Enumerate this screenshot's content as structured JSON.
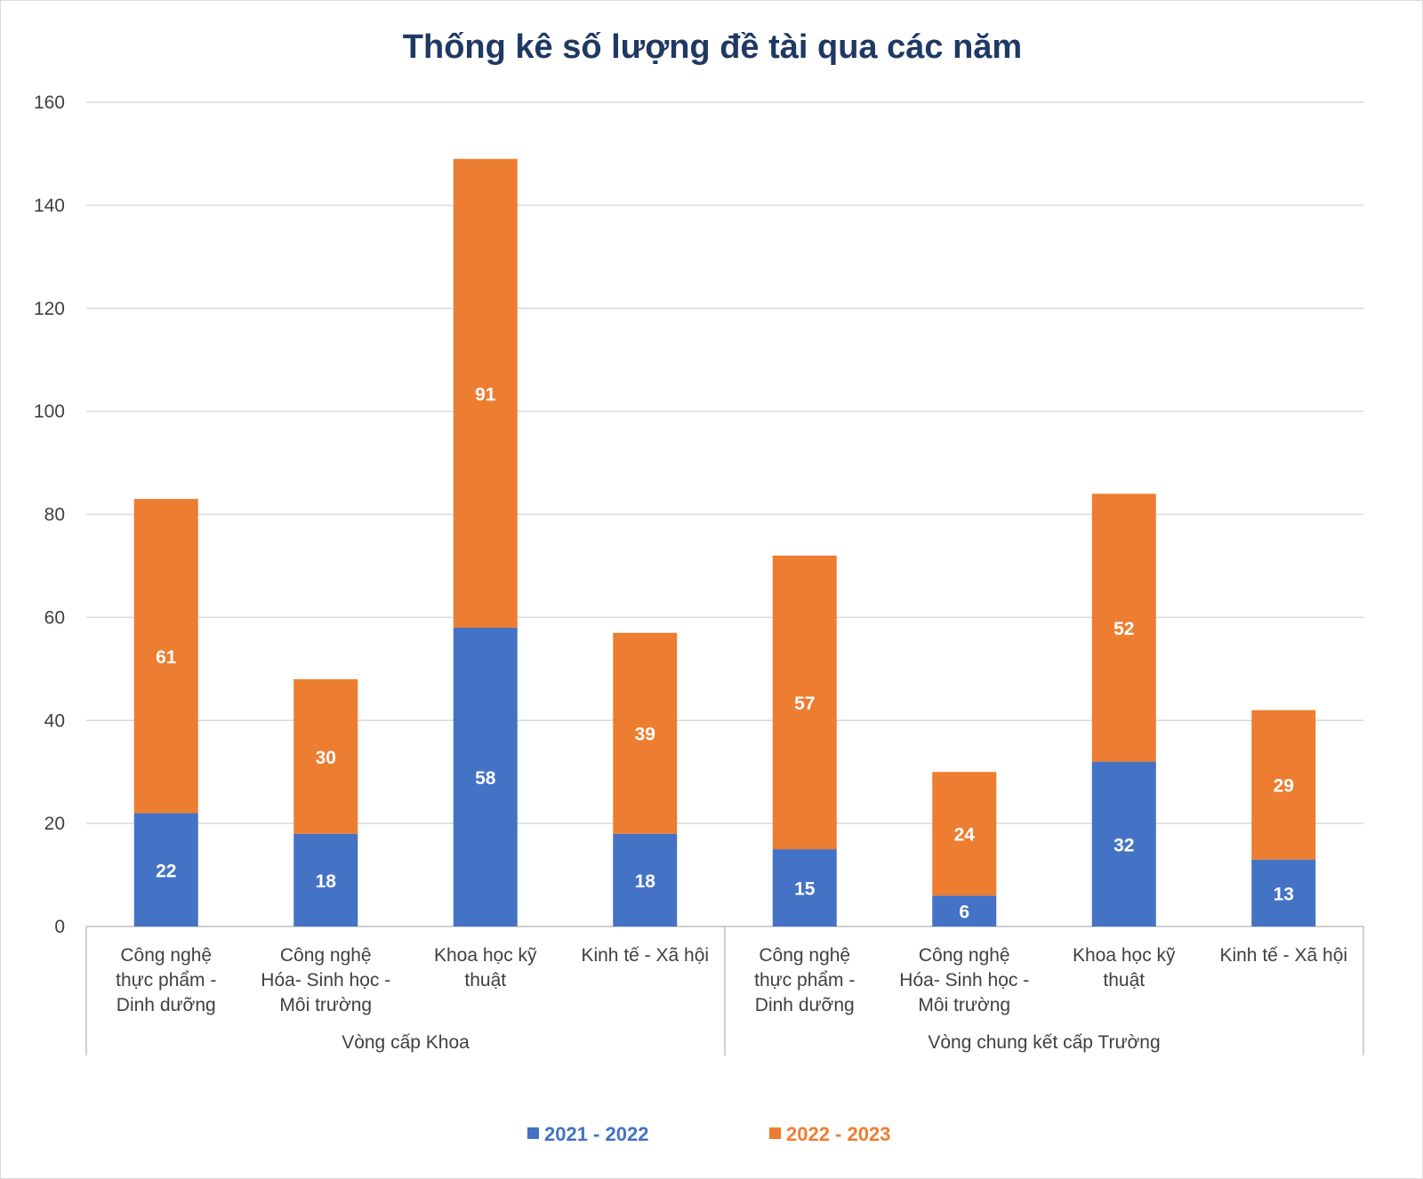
{
  "chart_data": {
    "type": "bar",
    "stacked": true,
    "title": "Thống kê số lượng đề tài qua các năm",
    "xlabel": "",
    "ylabel": "",
    "ylim": [
      0,
      160
    ],
    "yticks": [
      0,
      20,
      40,
      60,
      80,
      100,
      120,
      140,
      160
    ],
    "grid": true,
    "legend_position": "bottom",
    "groups": [
      {
        "label": "Vòng cấp Khoa",
        "categories": [
          0,
          1,
          2,
          3
        ]
      },
      {
        "label": "Vòng chung kết cấp Trường",
        "categories": [
          4,
          5,
          6,
          7
        ]
      }
    ],
    "categories": [
      [
        "Công nghệ",
        "thực phẩm -",
        "Dinh dưỡng"
      ],
      [
        "Công nghệ",
        "Hóa- Sinh học -",
        "Môi trường"
      ],
      [
        "Khoa học kỹ",
        "thuật"
      ],
      [
        "Kinh tế - Xã hội"
      ],
      [
        "Công nghệ",
        "thực phẩm -",
        "Dinh dưỡng"
      ],
      [
        "Công nghệ",
        "Hóa- Sinh học -",
        "Môi trường"
      ],
      [
        "Khoa học kỹ",
        "thuật"
      ],
      [
        "Kinh tế - Xã hội"
      ]
    ],
    "series": [
      {
        "name": "2021 - 2022",
        "color": "#4472c4",
        "values": [
          22,
          18,
          58,
          18,
          15,
          6,
          32,
          13
        ]
      },
      {
        "name": "2022 - 2023",
        "color": "#ed7d31",
        "values": [
          61,
          30,
          91,
          39,
          57,
          24,
          52,
          29
        ]
      }
    ]
  }
}
